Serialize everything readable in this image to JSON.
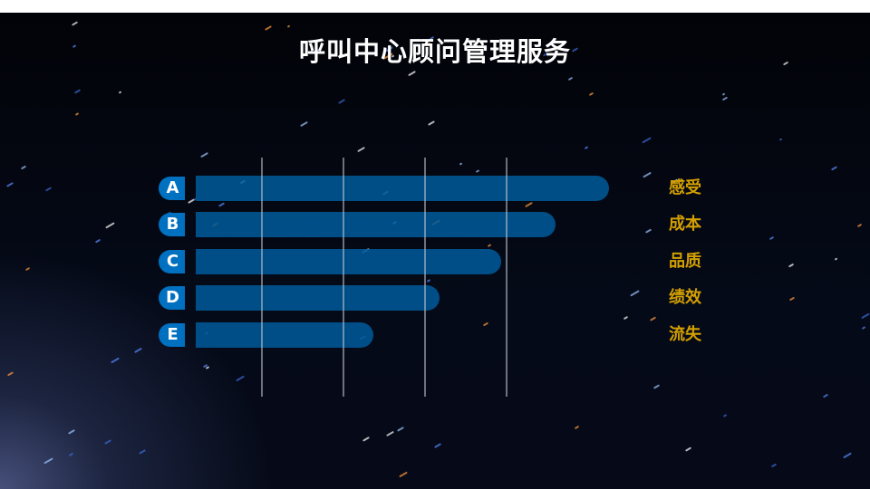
{
  "title": "呼叫中心顾问管理服务",
  "colors": {
    "badge": "#0070c0",
    "bar": "#00508a",
    "label": "#d4a000",
    "title": "#ffffff"
  },
  "chart_data": {
    "type": "bar",
    "orientation": "horizontal",
    "title": "呼叫中心顾问管理服务",
    "categories": [
      "A",
      "B",
      "C",
      "D",
      "E"
    ],
    "category_labels": [
      "感受",
      "成本",
      "品质",
      "绩效",
      "流失"
    ],
    "values": [
      100,
      87,
      74,
      59,
      43
    ],
    "value_unit": "relative percent of longest bar",
    "grid": true,
    "gridline_count": 4
  }
}
